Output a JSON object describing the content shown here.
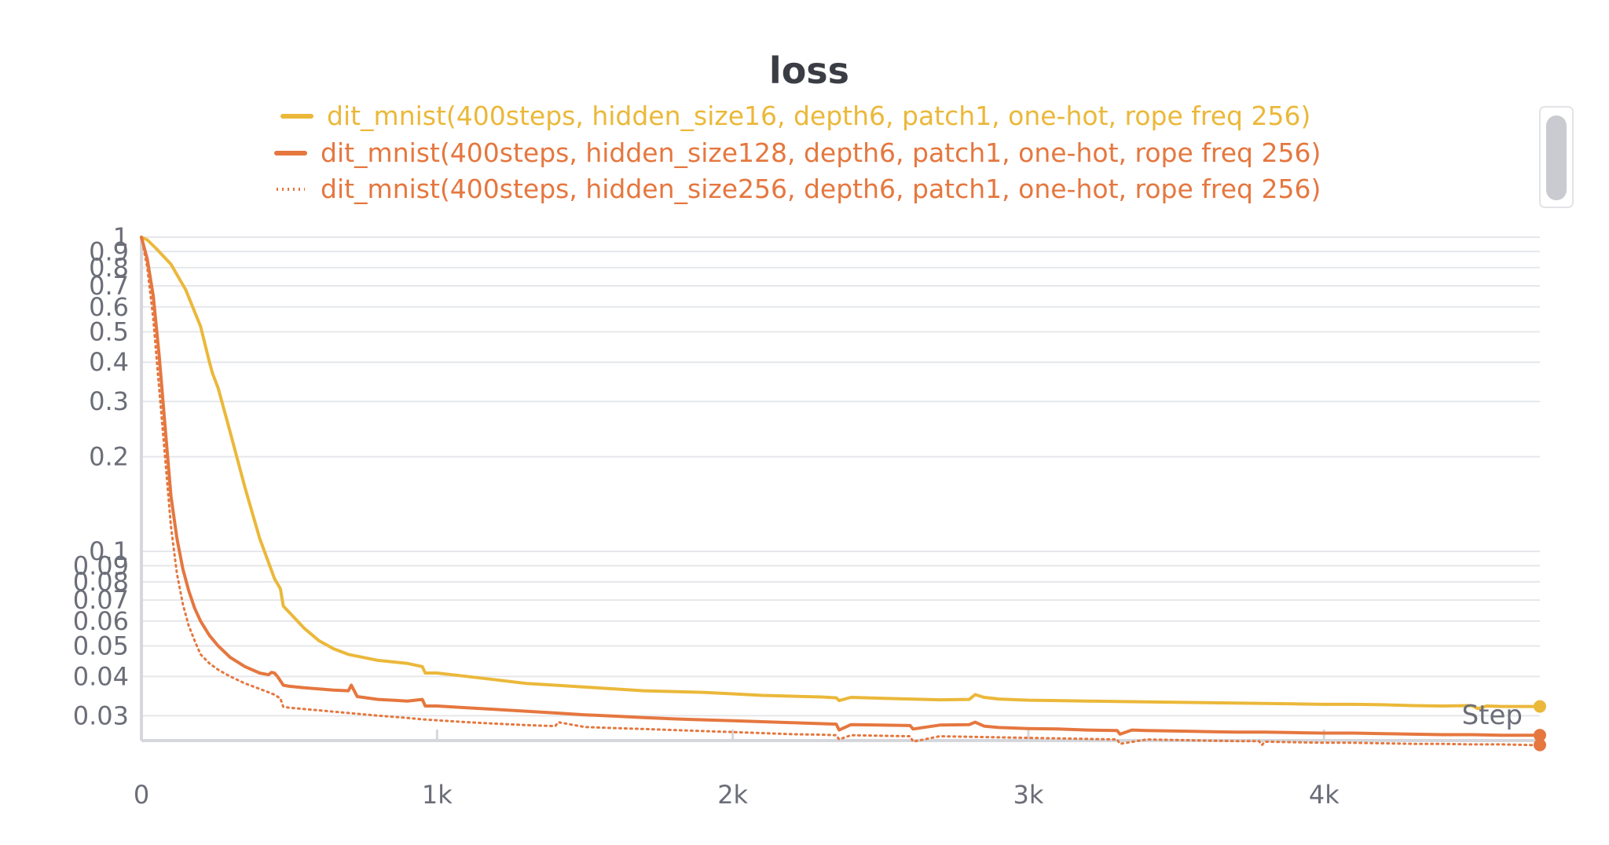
{
  "chart_data": {
    "type": "line",
    "title": "loss",
    "xlabel": "Step",
    "ylabel": "",
    "y_scale": "log",
    "xlim": [
      0,
      4730
    ],
    "ylim": [
      0.025,
      1
    ],
    "x_ticks": [
      {
        "value": 0,
        "label": "0"
      },
      {
        "value": 1000,
        "label": "1k"
      },
      {
        "value": 2000,
        "label": "2k"
      },
      {
        "value": 3000,
        "label": "3k"
      },
      {
        "value": 4000,
        "label": "4k"
      }
    ],
    "y_ticks": [
      {
        "value": 1,
        "label": "1"
      },
      {
        "value": 0.9,
        "label": "0.9"
      },
      {
        "value": 0.8,
        "label": "0.8"
      },
      {
        "value": 0.7,
        "label": "0.7"
      },
      {
        "value": 0.6,
        "label": "0.6"
      },
      {
        "value": 0.5,
        "label": "0.5"
      },
      {
        "value": 0.4,
        "label": "0.4"
      },
      {
        "value": 0.3,
        "label": "0.3"
      },
      {
        "value": 0.2,
        "label": "0.2"
      },
      {
        "value": 0.1,
        "label": "0.1"
      },
      {
        "value": 0.09,
        "label": "0.09"
      },
      {
        "value": 0.08,
        "label": "0.08"
      },
      {
        "value": 0.07,
        "label": "0.07"
      },
      {
        "value": 0.06,
        "label": "0.06"
      },
      {
        "value": 0.05,
        "label": "0.05"
      },
      {
        "value": 0.04,
        "label": "0.04"
      },
      {
        "value": 0.03,
        "label": "0.03"
      }
    ],
    "grid": true,
    "legend_position": "top-center",
    "series": [
      {
        "name": "dit_mnist(400steps, hidden_size16, depth6, patch1, one-hot, rope freq 256)",
        "color": "#ebb83a",
        "dash": "solid",
        "x": [
          0,
          20,
          50,
          100,
          150,
          200,
          230,
          240,
          260,
          300,
          350,
          400,
          450,
          470,
          480,
          500,
          550,
          600,
          650,
          700,
          800,
          900,
          950,
          960,
          1000,
          1100,
          1200,
          1300,
          1400,
          1500,
          1600,
          1700,
          1800,
          1900,
          2000,
          2100,
          2200,
          2300,
          2350,
          2360,
          2400,
          2500,
          2600,
          2700,
          2800,
          2820,
          2850,
          2900,
          3000,
          3100,
          3200,
          3300,
          3400,
          3500,
          3600,
          3700,
          3800,
          3900,
          4000,
          4100,
          4200,
          4300,
          4400,
          4500,
          4520,
          4550,
          4600,
          4650,
          4700,
          4730
        ],
        "y": [
          1.0,
          0.98,
          0.92,
          0.82,
          0.68,
          0.52,
          0.4,
          0.37,
          0.33,
          0.24,
          0.16,
          0.11,
          0.082,
          0.076,
          0.067,
          0.064,
          0.057,
          0.052,
          0.049,
          0.047,
          0.045,
          0.044,
          0.043,
          0.041,
          0.041,
          0.04,
          0.039,
          0.038,
          0.0375,
          0.037,
          0.0365,
          0.036,
          0.0358,
          0.0356,
          0.0352,
          0.0348,
          0.0346,
          0.0344,
          0.0342,
          0.0335,
          0.0343,
          0.0341,
          0.0339,
          0.0337,
          0.0338,
          0.035,
          0.0343,
          0.0339,
          0.0336,
          0.0335,
          0.0334,
          0.0333,
          0.0332,
          0.0331,
          0.033,
          0.0329,
          0.0328,
          0.0327,
          0.0326,
          0.0326,
          0.0325,
          0.0323,
          0.0322,
          0.0323,
          0.0316,
          0.0322,
          0.0321,
          0.0321,
          0.0321,
          0.0321
        ]
      },
      {
        "name": "dit_mnist(400steps, hidden_size128, depth6, patch1, one-hot, rope freq 256)",
        "color": "#e5773f",
        "dash": "solid",
        "x": [
          0,
          20,
          40,
          60,
          80,
          100,
          120,
          140,
          160,
          180,
          200,
          230,
          260,
          300,
          350,
          400,
          430,
          440,
          450,
          460,
          480,
          500,
          550,
          600,
          650,
          700,
          710,
          730,
          800,
          900,
          950,
          960,
          1000,
          1100,
          1200,
          1300,
          1400,
          1500,
          1600,
          1700,
          1800,
          1900,
          2000,
          2100,
          2200,
          2300,
          2350,
          2360,
          2400,
          2500,
          2600,
          2610,
          2700,
          2800,
          2820,
          2850,
          2900,
          3000,
          3100,
          3200,
          3300,
          3310,
          3350,
          3400,
          3500,
          3600,
          3700,
          3800,
          3900,
          4000,
          4100,
          4200,
          4300,
          4400,
          4500,
          4600,
          4700,
          4730
        ],
        "y": [
          1.0,
          0.85,
          0.65,
          0.42,
          0.25,
          0.15,
          0.11,
          0.088,
          0.075,
          0.066,
          0.06,
          0.054,
          0.05,
          0.046,
          0.043,
          0.041,
          0.0405,
          0.0412,
          0.041,
          0.04,
          0.0375,
          0.0372,
          0.0368,
          0.0365,
          0.0362,
          0.036,
          0.0375,
          0.0345,
          0.0338,
          0.0334,
          0.0338,
          0.0322,
          0.0322,
          0.0318,
          0.0314,
          0.031,
          0.0306,
          0.0302,
          0.0299,
          0.0296,
          0.0293,
          0.0291,
          0.0289,
          0.0287,
          0.0285,
          0.0283,
          0.0282,
          0.027,
          0.0281,
          0.028,
          0.0279,
          0.0272,
          0.028,
          0.0281,
          0.0286,
          0.0278,
          0.0275,
          0.0273,
          0.0272,
          0.027,
          0.0269,
          0.0262,
          0.027,
          0.0269,
          0.0268,
          0.0267,
          0.0266,
          0.0266,
          0.0265,
          0.0264,
          0.0264,
          0.0263,
          0.0262,
          0.0261,
          0.0261,
          0.026,
          0.026,
          0.026
        ]
      },
      {
        "name": "dit_mnist(400steps, hidden_size256, depth6, patch1, one-hot, rope freq 256)",
        "color": "#e5773f",
        "dash": "dotted",
        "x": [
          0,
          20,
          40,
          60,
          80,
          100,
          120,
          140,
          160,
          180,
          200,
          230,
          260,
          300,
          350,
          400,
          450,
          470,
          480,
          500,
          600,
          700,
          800,
          900,
          950,
          1000,
          1100,
          1200,
          1300,
          1400,
          1410,
          1500,
          1600,
          1700,
          1800,
          1900,
          2000,
          2100,
          2200,
          2300,
          2350,
          2360,
          2400,
          2500,
          2600,
          2610,
          2700,
          2800,
          2900,
          3000,
          3100,
          3200,
          3300,
          3310,
          3400,
          3500,
          3600,
          3700,
          3780,
          3790,
          3800,
          3900,
          4000,
          4100,
          4200,
          4300,
          4400,
          4500,
          4600,
          4700,
          4730
        ],
        "y": [
          1.0,
          0.8,
          0.55,
          0.33,
          0.2,
          0.12,
          0.085,
          0.068,
          0.058,
          0.052,
          0.047,
          0.044,
          0.042,
          0.04,
          0.038,
          0.0365,
          0.035,
          0.034,
          0.032,
          0.0318,
          0.0312,
          0.0306,
          0.03,
          0.0295,
          0.0292,
          0.029,
          0.0286,
          0.0283,
          0.028,
          0.0278,
          0.0286,
          0.0276,
          0.0274,
          0.0272,
          0.027,
          0.0268,
          0.0266,
          0.0264,
          0.0262,
          0.0261,
          0.026,
          0.0252,
          0.026,
          0.0259,
          0.0258,
          0.0248,
          0.0258,
          0.0257,
          0.0256,
          0.0255,
          0.0254,
          0.0253,
          0.0252,
          0.0244,
          0.0252,
          0.0251,
          0.025,
          0.0249,
          0.0249,
          0.0242,
          0.0248,
          0.0247,
          0.0246,
          0.0246,
          0.0245,
          0.0244,
          0.0244,
          0.0243,
          0.0243,
          0.0242,
          0.0242
        ]
      }
    ]
  },
  "colors": {
    "series_yellow": "#ebb83a",
    "series_orange": "#e5773f",
    "grid": "#e6e7ea",
    "tick_text": "#6b6e78",
    "title_text": "#3b3d45"
  }
}
